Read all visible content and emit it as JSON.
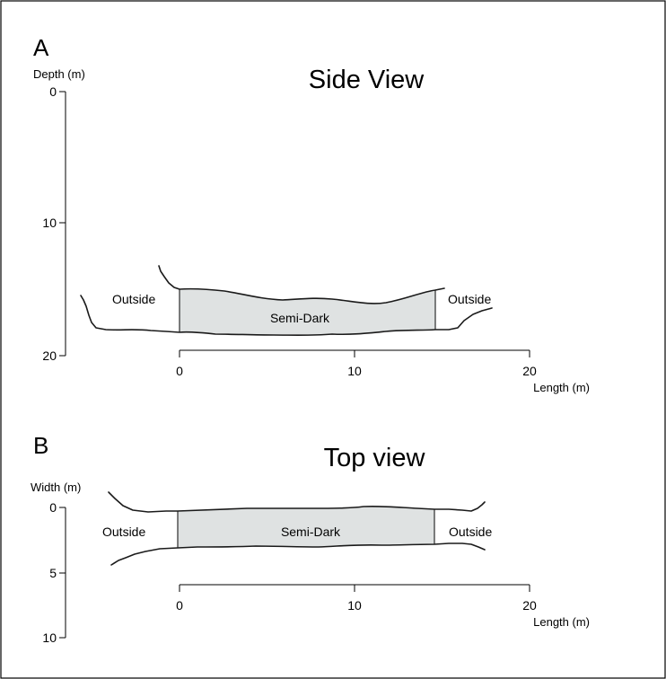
{
  "panel_a": {
    "letter": "A",
    "title": "Side View",
    "y_axis_label": "Depth (m)",
    "x_axis_label": "Length (m)",
    "y_ticks": [
      "0",
      "10",
      "20"
    ],
    "x_ticks": [
      "0",
      "10",
      "20"
    ],
    "zone_inside": "Semi-Dark",
    "zone_left": "Outside",
    "zone_right": "Outside"
  },
  "panel_b": {
    "letter": "B",
    "title": "Top view",
    "y_axis_label": "Width (m)",
    "x_axis_label": "Length (m)",
    "y_ticks": [
      "0",
      "5",
      "10"
    ],
    "x_ticks": [
      "0",
      "10",
      "20"
    ],
    "zone_inside": "Semi-Dark",
    "zone_left": "Outside",
    "zone_right": "Outside"
  },
  "colors": {
    "zone_fill": "#dfe2e2",
    "line": "#1a1a1a"
  }
}
